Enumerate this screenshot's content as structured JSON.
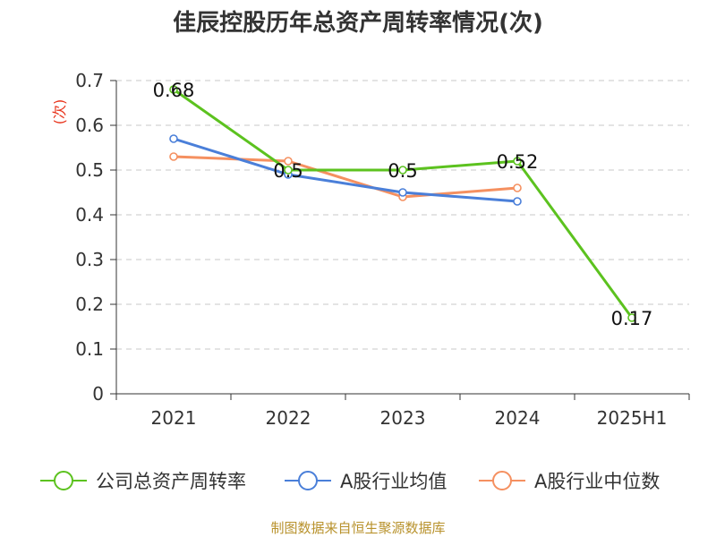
{
  "chart_data": {
    "type": "line",
    "title": "佳辰控股历年总资产周转率情况(次)",
    "ylabel": "(次)",
    "xlabel": "",
    "categories": [
      "2021",
      "2022",
      "2023",
      "2024",
      "2025H1"
    ],
    "ylim": [
      0,
      0.7
    ],
    "yticks": [
      "0",
      "0.1",
      "0.2",
      "0.3",
      "0.4",
      "0.5",
      "0.6",
      "0.7"
    ],
    "grid": true,
    "legend_position": "bottom",
    "series": [
      {
        "name": "公司总资产周转率",
        "color": "#5cc21f",
        "values": [
          0.68,
          0.5,
          0.5,
          0.52,
          0.17
        ],
        "labels": [
          "0.68",
          "0.5",
          "0.5",
          "0.52",
          "0.17"
        ]
      },
      {
        "name": "A股行业均值",
        "color": "#4a7fd9",
        "values": [
          0.57,
          0.49,
          0.45,
          0.43,
          null
        ]
      },
      {
        "name": "A股行业中位数",
        "color": "#f59060",
        "values": [
          0.53,
          0.52,
          0.44,
          0.46,
          null
        ]
      }
    ]
  },
  "source": "制图数据来自恒生聚源数据库"
}
